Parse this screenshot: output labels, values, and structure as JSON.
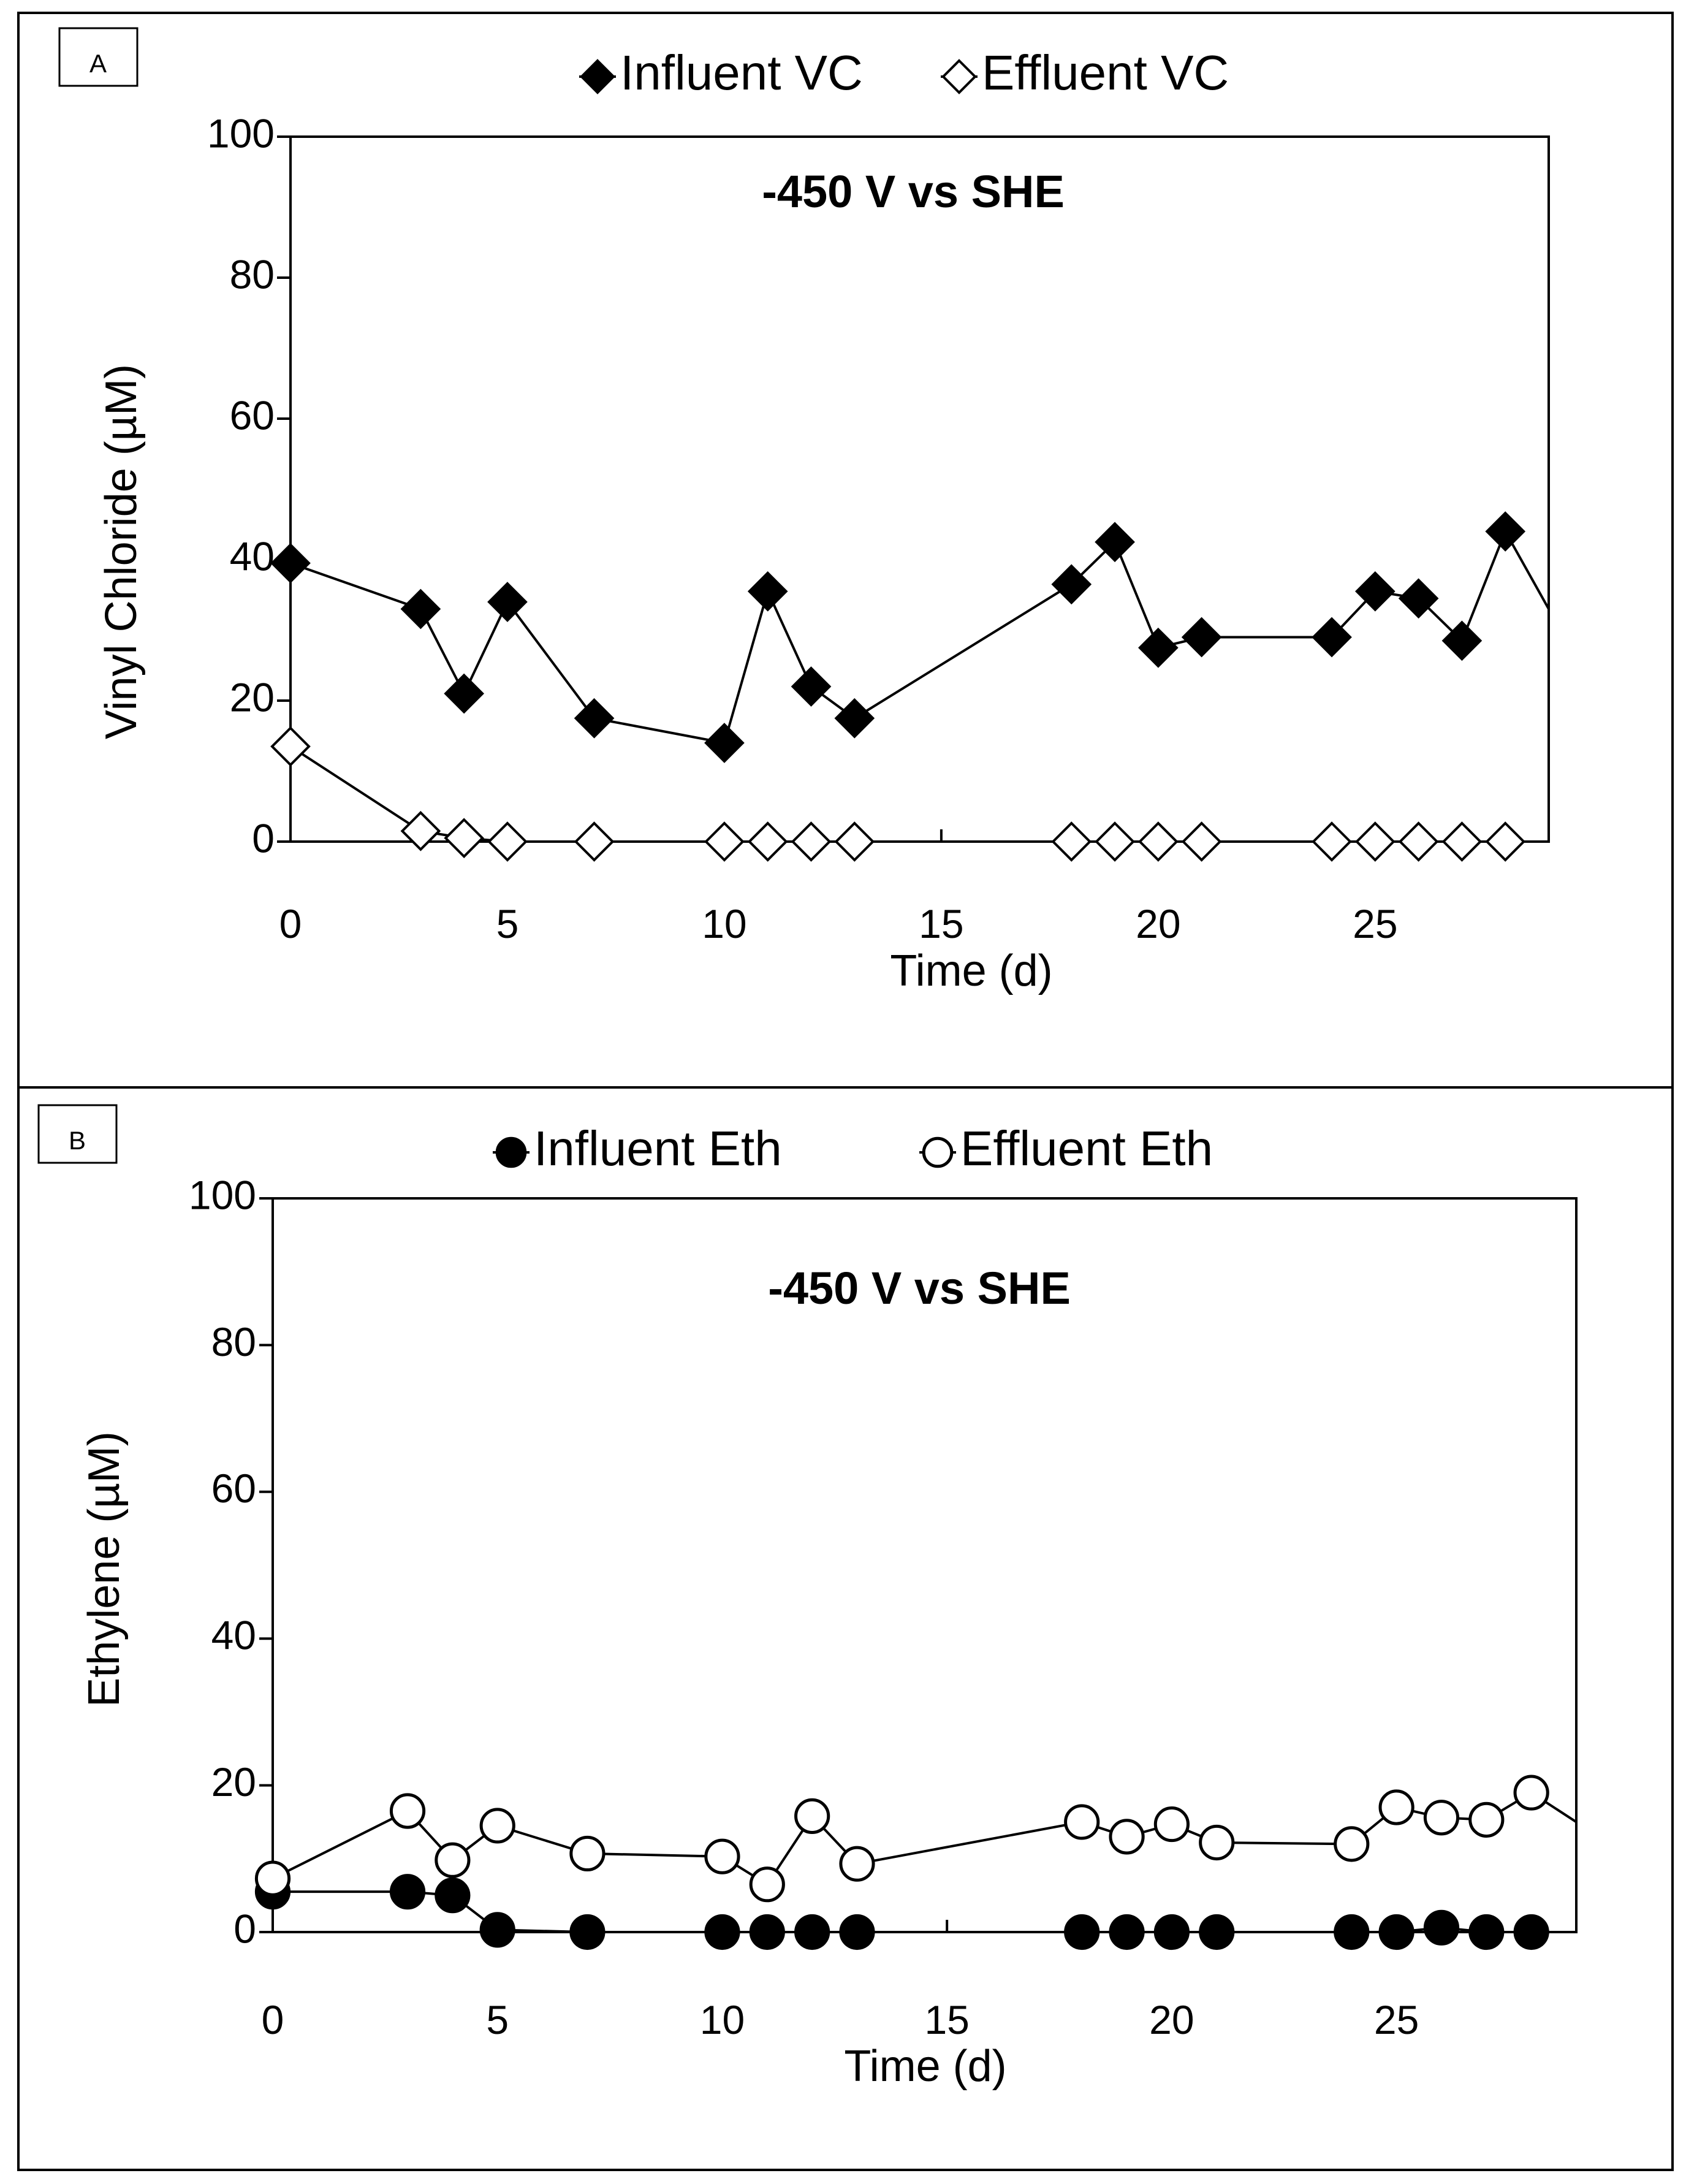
{
  "chart_data": [
    {
      "type": "line",
      "panel_label": "A",
      "annotation": "-450 V vs SHE",
      "xlabel": "Time (d)",
      "ylabel": "Vinyl Chloride  (µM)",
      "xlim": [
        0,
        29
      ],
      "ylim": [
        0,
        100
      ],
      "x_ticks": [
        "0",
        "5",
        "10",
        "15",
        "20",
        "25"
      ],
      "y_ticks": [
        "0",
        "20",
        "40",
        "60",
        "80",
        "100"
      ],
      "legend_position": "top-center",
      "series": [
        {
          "name": "Influent VC",
          "marker": "diamond-filled",
          "x": [
            0,
            3,
            4,
            5,
            7,
            10,
            11,
            12,
            13,
            18,
            19,
            20,
            21,
            24,
            25,
            26,
            27,
            28,
            29
          ],
          "values": [
            39.5,
            33,
            21,
            34,
            17.5,
            14,
            35.5,
            22,
            17.5,
            36.5,
            42.5,
            27.5,
            29,
            29,
            35.5,
            34.5,
            28.5,
            44,
            33
          ]
        },
        {
          "name": "Effluent VC",
          "marker": "diamond-open",
          "x": [
            0,
            3,
            4,
            5,
            7,
            10,
            11,
            12,
            13,
            18,
            19,
            20,
            21,
            24,
            25,
            26,
            27,
            28
          ],
          "values": [
            13.5,
            1.5,
            0.5,
            0,
            0,
            0,
            0,
            0,
            0,
            0,
            0,
            0,
            0,
            0,
            0,
            0,
            0,
            0
          ]
        }
      ]
    },
    {
      "type": "line",
      "panel_label": "B",
      "annotation": "-450 V vs SHE",
      "xlabel": "Time  (d)",
      "ylabel": "Ethylene (µM)",
      "xlim": [
        0,
        29
      ],
      "ylim": [
        0,
        100
      ],
      "x_ticks": [
        "0",
        "5",
        "10",
        "15",
        "20",
        "25"
      ],
      "y_ticks": [
        "0",
        "20",
        "40",
        "60",
        "80",
        "100"
      ],
      "legend_position": "top-center",
      "series": [
        {
          "name": "Influent Eth",
          "marker": "circle-filled",
          "x": [
            0,
            3,
            4,
            5,
            7,
            10,
            11,
            12,
            13,
            18,
            19,
            20,
            21,
            24,
            25,
            26,
            27,
            28
          ],
          "values": [
            5.5,
            5.5,
            5,
            0.3,
            0,
            0,
            0,
            0,
            0,
            0,
            0,
            0,
            0,
            0,
            0,
            0.6,
            0,
            0
          ]
        },
        {
          "name": "Effluent Eth",
          "marker": "circle-open",
          "x": [
            0,
            3,
            4,
            5,
            7,
            10,
            11,
            12,
            13,
            18,
            19,
            20,
            21,
            24,
            25,
            26,
            27,
            28,
            29
          ],
          "values": [
            7.3,
            16.5,
            9.8,
            14.5,
            10.7,
            10.3,
            6.5,
            15.8,
            9.3,
            15,
            13,
            14.7,
            12.2,
            12,
            17,
            15.6,
            15.3,
            19,
            15
          ]
        }
      ]
    }
  ]
}
